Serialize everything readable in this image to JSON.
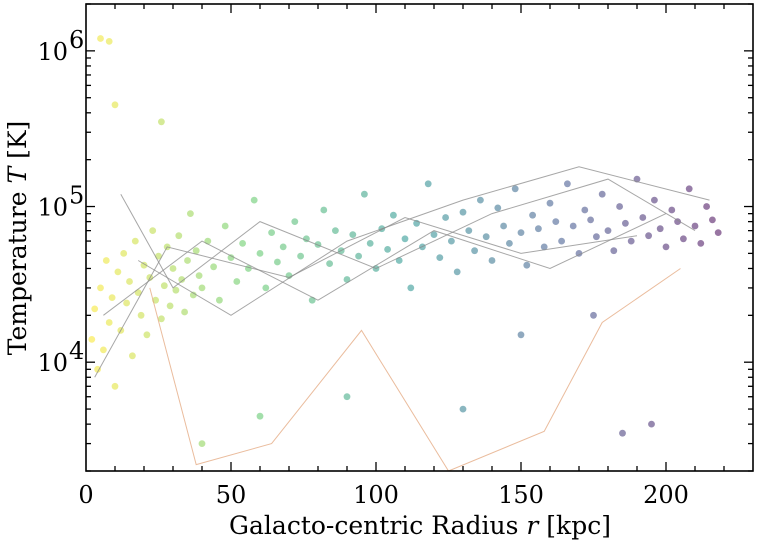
{
  "chart_data": {
    "type": "scatter",
    "xlabel": "Galacto-centric Radius r [kpc]",
    "xlabel_parts": {
      "pre": "Galacto-centric Radius ",
      "var": "r",
      "post": " [kpc]"
    },
    "ylabel": "Temperature T [K]",
    "ylabel_parts": {
      "pre": "Temperature ",
      "var": "T",
      "post": " [K]"
    },
    "xlim": [
      0,
      230
    ],
    "ylim": [
      2000,
      2000000
    ],
    "yscale": "log",
    "grid": false,
    "legend": "none",
    "x_ticks": [
      {
        "value": 0,
        "label": "0"
      },
      {
        "value": 50,
        "label": "50"
      },
      {
        "value": 100,
        "label": "100"
      },
      {
        "value": 150,
        "label": "150"
      },
      {
        "value": 200,
        "label": "200"
      }
    ],
    "y_ticks": [
      {
        "value": 10000,
        "base": "10",
        "exp": "4"
      },
      {
        "value": 100000,
        "base": "10",
        "exp": "5"
      },
      {
        "value": 1000000,
        "base": "10",
        "exp": "6"
      }
    ],
    "colormap": "viridis (reversed with radius)",
    "colors": {
      "near": "#fde725",
      "mid": "#21918c",
      "far": "#440154",
      "track_line": "#8a8a8a",
      "track_line_warm": "#e3a67c"
    },
    "points": [
      [
        2,
        14000
      ],
      [
        3,
        22000
      ],
      [
        4,
        9000
      ],
      [
        5,
        30000
      ],
      [
        6,
        12000
      ],
      [
        7,
        45000
      ],
      [
        8,
        18000
      ],
      [
        9,
        26000
      ],
      [
        10,
        7000
      ],
      [
        11,
        38000
      ],
      [
        12,
        16000
      ],
      [
        13,
        50000
      ],
      [
        14,
        24000
      ],
      [
        15,
        33000
      ],
      [
        16,
        11000
      ],
      [
        17,
        60000
      ],
      [
        18,
        28000
      ],
      [
        19,
        20000
      ],
      [
        20,
        42000
      ],
      [
        21,
        15000
      ],
      [
        22,
        35000
      ],
      [
        23,
        70000
      ],
      [
        24,
        25000
      ],
      [
        25,
        48000
      ],
      [
        26,
        19000
      ],
      [
        27,
        31000
      ],
      [
        28,
        55000
      ],
      [
        29,
        23000
      ],
      [
        30,
        40000
      ],
      [
        31,
        29000
      ],
      [
        32,
        65000
      ],
      [
        33,
        34000
      ],
      [
        34,
        21000
      ],
      [
        35,
        45000
      ],
      [
        36,
        90000
      ],
      [
        37,
        27000
      ],
      [
        38,
        52000
      ],
      [
        39,
        36000
      ],
      [
        40,
        30000
      ],
      [
        42,
        60000
      ],
      [
        44,
        41000
      ],
      [
        46,
        25000
      ],
      [
        48,
        75000
      ],
      [
        50,
        47000
      ],
      [
        52,
        33000
      ],
      [
        54,
        58000
      ],
      [
        56,
        40000
      ],
      [
        58,
        110000
      ],
      [
        60,
        50000
      ],
      [
        62,
        30000
      ],
      [
        64,
        68000
      ],
      [
        66,
        44000
      ],
      [
        68,
        55000
      ],
      [
        70,
        36000
      ],
      [
        72,
        80000
      ],
      [
        74,
        48000
      ],
      [
        76,
        62000
      ],
      [
        78,
        25000
      ],
      [
        80,
        57000
      ],
      [
        82,
        95000
      ],
      [
        84,
        43000
      ],
      [
        86,
        70000
      ],
      [
        88,
        52000
      ],
      [
        90,
        34000
      ],
      [
        92,
        66000
      ],
      [
        94,
        48000
      ],
      [
        96,
        120000
      ],
      [
        98,
        58000
      ],
      [
        100,
        40000
      ],
      [
        102,
        72000
      ],
      [
        104,
        53000
      ],
      [
        106,
        88000
      ],
      [
        108,
        45000
      ],
      [
        110,
        62000
      ],
      [
        112,
        30000
      ],
      [
        114,
        78000
      ],
      [
        116,
        55000
      ],
      [
        118,
        140000
      ],
      [
        120,
        66000
      ],
      [
        122,
        47000
      ],
      [
        124,
        85000
      ],
      [
        126,
        60000
      ],
      [
        128,
        38000
      ],
      [
        130,
        92000
      ],
      [
        132,
        70000
      ],
      [
        134,
        52000
      ],
      [
        136,
        110000
      ],
      [
        138,
        64000
      ],
      [
        140,
        45000
      ],
      [
        142,
        98000
      ],
      [
        144,
        75000
      ],
      [
        146,
        58000
      ],
      [
        148,
        130000
      ],
      [
        150,
        68000
      ],
      [
        152,
        42000
      ],
      [
        154,
        88000
      ],
      [
        156,
        72000
      ],
      [
        158,
        55000
      ],
      [
        160,
        105000
      ],
      [
        162,
        80000
      ],
      [
        164,
        60000
      ],
      [
        166,
        140000
      ],
      [
        168,
        75000
      ],
      [
        170,
        50000
      ],
      [
        172,
        95000
      ],
      [
        174,
        82000
      ],
      [
        176,
        64000
      ],
      [
        178,
        120000
      ],
      [
        180,
        70000
      ],
      [
        182,
        52000
      ],
      [
        184,
        100000
      ],
      [
        186,
        78000
      ],
      [
        188,
        60000
      ],
      [
        190,
        150000
      ],
      [
        192,
        85000
      ],
      [
        194,
        65000
      ],
      [
        196,
        110000
      ],
      [
        198,
        72000
      ],
      [
        200,
        55000
      ],
      [
        202,
        95000
      ],
      [
        204,
        80000
      ],
      [
        206,
        62000
      ],
      [
        208,
        130000
      ],
      [
        210,
        75000
      ],
      [
        212,
        58000
      ],
      [
        214,
        100000
      ],
      [
        216,
        82000
      ],
      [
        218,
        68000
      ],
      [
        5,
        1200000
      ],
      [
        8,
        1150000
      ],
      [
        10,
        450000
      ],
      [
        26,
        350000
      ],
      [
        90,
        6000
      ],
      [
        130,
        5000
      ],
      [
        150,
        15000
      ],
      [
        175,
        20000
      ],
      [
        185,
        3500
      ],
      [
        195,
        4000
      ],
      [
        60,
        4500
      ],
      [
        40,
        3000
      ]
    ],
    "tracks": [
      [
        [
          12,
          120000
        ],
        [
          30,
          30000
        ],
        [
          60,
          80000
        ],
        [
          100,
          40000
        ],
        [
          140,
          90000
        ],
        [
          180,
          150000
        ],
        [
          210,
          70000
        ]
      ],
      [
        [
          6,
          20000
        ],
        [
          40,
          60000
        ],
        [
          80,
          25000
        ],
        [
          120,
          70000
        ],
        [
          160,
          40000
        ],
        [
          200,
          90000
        ]
      ],
      [
        [
          18,
          45000
        ],
        [
          50,
          20000
        ],
        [
          90,
          60000
        ],
        [
          130,
          110000
        ],
        [
          170,
          180000
        ],
        [
          215,
          110000
        ]
      ],
      [
        [
          3,
          8000
        ],
        [
          28,
          55000
        ],
        [
          70,
          35000
        ],
        [
          110,
          85000
        ],
        [
          150,
          50000
        ],
        [
          190,
          65000
        ]
      ],
      [
        [
          22,
          30000
        ],
        [
          38,
          2200
        ],
        [
          64,
          3000
        ],
        [
          95,
          16000
        ],
        [
          125,
          2000
        ],
        [
          158,
          3600
        ],
        [
          178,
          18000
        ],
        [
          205,
          40000
        ]
      ]
    ]
  }
}
